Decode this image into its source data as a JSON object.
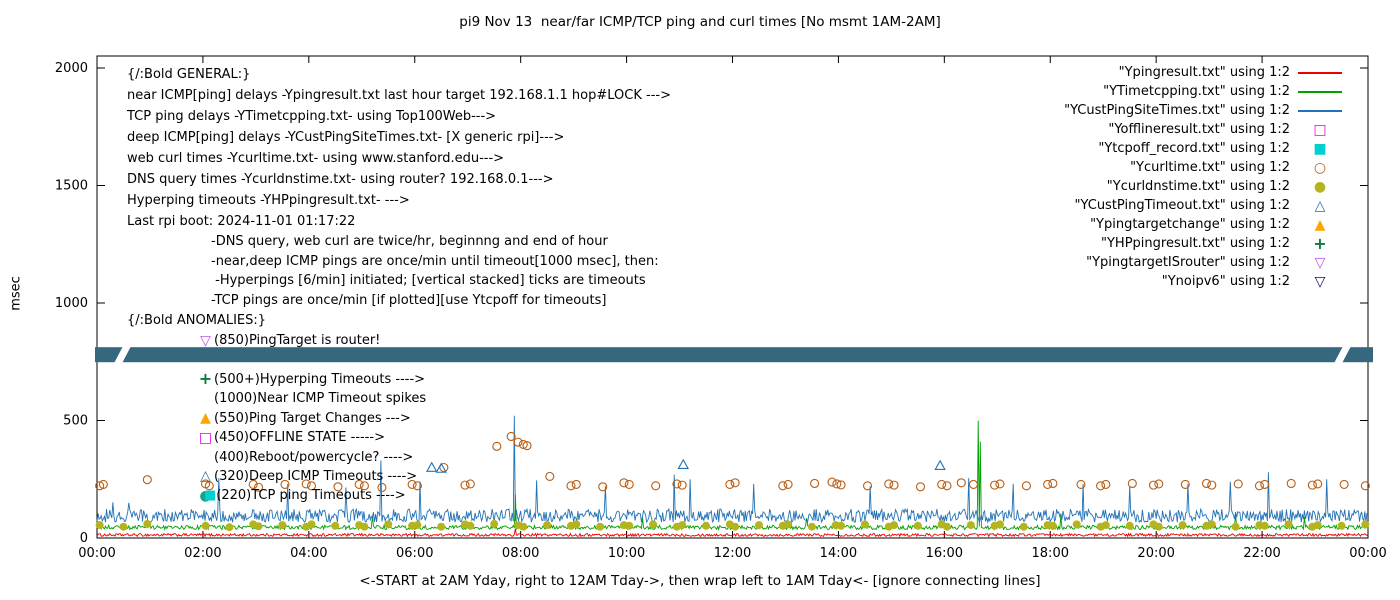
{
  "chart_data": {
    "type": "line",
    "title": "pi9 Nov 13  near/far ICMP/TCP ping and curl times [No msmt 1AM-2AM]",
    "xlabel": "<-START at 2AM Yday, right to 12AM Tday->, then wrap left to 1AM Tday<- [ignore connecting lines]",
    "ylabel": "msec",
    "x_unit": "hours",
    "xlim": [
      0,
      24
    ],
    "ylim": [
      0,
      2050
    ],
    "grid": false,
    "legend_position": "top-right",
    "x_ticks": [
      "00:00",
      "02:00",
      "04:00",
      "06:00",
      "08:00",
      "10:00",
      "12:00",
      "14:00",
      "16:00",
      "18:00",
      "20:00",
      "22:00",
      "00:00"
    ],
    "y_ticks": [
      0,
      500,
      1000,
      1500,
      2000
    ],
    "band": {
      "y_value": 780,
      "y_span_msec": 64,
      "color": "#35687f"
    },
    "series": [
      {
        "name": "Ypingresult.txt",
        "style": "line",
        "color": "#ee0000",
        "base": [
          [
            0,
            13
          ],
          [
            24,
            13
          ]
        ],
        "noise": 6,
        "spikes": [
          [
            7.9,
            40
          ]
        ]
      },
      {
        "name": "YTimetcpping.txt",
        "style": "line",
        "color": "#00a000",
        "base": [
          [
            0,
            45
          ],
          [
            24,
            45
          ]
        ],
        "noise": 9,
        "spikes": [
          [
            5.2,
            95
          ],
          [
            7.9,
            185
          ],
          [
            10.3,
            90
          ],
          [
            13.4,
            85
          ],
          [
            16.64,
            500
          ],
          [
            16.68,
            410
          ],
          [
            18.2,
            95
          ],
          [
            21.5,
            100
          ],
          [
            22.8,
            90
          ]
        ]
      },
      {
        "name": "YCustPingSiteTimes.txt",
        "style": "line",
        "color": "#2272b5",
        "base": [
          [
            0,
            95
          ],
          [
            24,
            95
          ]
        ],
        "noise": 28,
        "spikes": [
          [
            0.3,
            152
          ],
          [
            0.6,
            150
          ],
          [
            2.3,
            255
          ],
          [
            3.6,
            230
          ],
          [
            4.7,
            215
          ],
          [
            5.35,
            330
          ],
          [
            6.1,
            240
          ],
          [
            7.87,
            520
          ],
          [
            8.3,
            245
          ],
          [
            9.6,
            220
          ],
          [
            10.9,
            270
          ],
          [
            11.2,
            250
          ],
          [
            12.4,
            230
          ],
          [
            14.6,
            220
          ],
          [
            16.45,
            255
          ],
          [
            17.3,
            230
          ],
          [
            18.63,
            230
          ],
          [
            19.5,
            220
          ],
          [
            20.6,
            230
          ],
          [
            21.4,
            240
          ],
          [
            22.12,
            280
          ],
          [
            23.22,
            250
          ]
        ]
      },
      {
        "name": "Yofflineresult.txt",
        "style": "points",
        "marker": "square-open",
        "color": "#e600e6",
        "points": []
      },
      {
        "name": "Ytcpoff_record.txt",
        "style": "points",
        "marker": "square-filled",
        "color": "#00d0d0",
        "points": []
      },
      {
        "name": "Ycurltime.txt",
        "style": "points",
        "marker": "circle-open",
        "color": "#b85c12",
        "points": [
          [
            0.05,
            222
          ],
          [
            0.12,
            228
          ],
          [
            0.95,
            248
          ],
          [
            2.05,
            230
          ],
          [
            2.12,
            222
          ],
          [
            2.95,
            228
          ],
          [
            3.05,
            216
          ],
          [
            3.55,
            228
          ],
          [
            3.95,
            230
          ],
          [
            4.05,
            222
          ],
          [
            4.55,
            218
          ],
          [
            4.95,
            228
          ],
          [
            5.05,
            222
          ],
          [
            5.38,
            215
          ],
          [
            5.95,
            228
          ],
          [
            6.05,
            222
          ],
          [
            6.55,
            300
          ],
          [
            6.95,
            225
          ],
          [
            7.05,
            230
          ],
          [
            7.55,
            390
          ],
          [
            7.82,
            432
          ],
          [
            7.95,
            408
          ],
          [
            8.05,
            398
          ],
          [
            8.12,
            393
          ],
          [
            8.55,
            262
          ],
          [
            8.95,
            222
          ],
          [
            9.05,
            228
          ],
          [
            9.55,
            218
          ],
          [
            9.95,
            235
          ],
          [
            10.05,
            228
          ],
          [
            10.55,
            222
          ],
          [
            10.95,
            230
          ],
          [
            11.05,
            225
          ],
          [
            11.95,
            228
          ],
          [
            12.05,
            235
          ],
          [
            12.95,
            222
          ],
          [
            13.05,
            228
          ],
          [
            13.55,
            232
          ],
          [
            13.88,
            238
          ],
          [
            13.97,
            230
          ],
          [
            14.05,
            226
          ],
          [
            14.55,
            222
          ],
          [
            14.95,
            230
          ],
          [
            15.05,
            225
          ],
          [
            15.55,
            218
          ],
          [
            15.95,
            228
          ],
          [
            16.05,
            222
          ],
          [
            16.32,
            235
          ],
          [
            16.55,
            228
          ],
          [
            16.95,
            225
          ],
          [
            17.05,
            230
          ],
          [
            17.55,
            222
          ],
          [
            17.95,
            228
          ],
          [
            18.05,
            232
          ],
          [
            18.58,
            228
          ],
          [
            18.95,
            222
          ],
          [
            19.05,
            228
          ],
          [
            19.55,
            232
          ],
          [
            19.95,
            225
          ],
          [
            20.05,
            230
          ],
          [
            20.55,
            228
          ],
          [
            20.95,
            232
          ],
          [
            21.05,
            225
          ],
          [
            21.55,
            230
          ],
          [
            21.95,
            222
          ],
          [
            22.05,
            228
          ],
          [
            22.55,
            232
          ],
          [
            22.95,
            225
          ],
          [
            23.05,
            230
          ],
          [
            23.55,
            228
          ],
          [
            23.95,
            222
          ]
        ]
      },
      {
        "name": "Ycurldnstime.txt",
        "style": "points",
        "marker": "circle-filled",
        "color": "#b4b41e",
        "points": [
          [
            0.05,
            55
          ],
          [
            0.5,
            48
          ],
          [
            0.95,
            60
          ],
          [
            2.05,
            52
          ],
          [
            2.5,
            46
          ],
          [
            2.95,
            58
          ],
          [
            3.05,
            50
          ],
          [
            3.5,
            55
          ],
          [
            3.95,
            48
          ],
          [
            4.05,
            58
          ],
          [
            4.5,
            52
          ],
          [
            4.95,
            55
          ],
          [
            5.05,
            48
          ],
          [
            5.5,
            58
          ],
          [
            5.95,
            52
          ],
          [
            6.05,
            55
          ],
          [
            6.5,
            48
          ],
          [
            6.95,
            58
          ],
          [
            7.05,
            52
          ],
          [
            7.5,
            60
          ],
          [
            7.95,
            55
          ],
          [
            8.05,
            48
          ],
          [
            8.5,
            55
          ],
          [
            8.95,
            52
          ],
          [
            9.05,
            58
          ],
          [
            9.5,
            48
          ],
          [
            9.95,
            55
          ],
          [
            10.05,
            52
          ],
          [
            10.5,
            58
          ],
          [
            10.95,
            48
          ],
          [
            11.05,
            55
          ],
          [
            11.5,
            52
          ],
          [
            11.95,
            58
          ],
          [
            12.05,
            48
          ],
          [
            12.5,
            55
          ],
          [
            12.95,
            52
          ],
          [
            13.05,
            58
          ],
          [
            13.5,
            48
          ],
          [
            13.95,
            55
          ],
          [
            14.05,
            52
          ],
          [
            14.5,
            58
          ],
          [
            14.95,
            48
          ],
          [
            15.05,
            55
          ],
          [
            15.5,
            52
          ],
          [
            15.95,
            58
          ],
          [
            16.05,
            48
          ],
          [
            16.5,
            55
          ],
          [
            16.95,
            52
          ],
          [
            17.05,
            58
          ],
          [
            17.5,
            48
          ],
          [
            17.95,
            55
          ],
          [
            18.05,
            52
          ],
          [
            18.5,
            58
          ],
          [
            18.95,
            48
          ],
          [
            19.05,
            55
          ],
          [
            19.5,
            52
          ],
          [
            19.95,
            58
          ],
          [
            20.05,
            48
          ],
          [
            20.5,
            55
          ],
          [
            20.95,
            52
          ],
          [
            21.05,
            58
          ],
          [
            21.5,
            48
          ],
          [
            21.95,
            55
          ],
          [
            22.05,
            52
          ],
          [
            22.5,
            58
          ],
          [
            22.95,
            48
          ],
          [
            23.05,
            55
          ],
          [
            23.5,
            52
          ],
          [
            23.95,
            58
          ]
        ]
      },
      {
        "name": "YCustPingTimeout.txt",
        "style": "points",
        "marker": "triangle-open",
        "color": "#2272b5",
        "points": [
          [
            6.32,
            300
          ],
          [
            6.5,
            296
          ],
          [
            11.07,
            312
          ],
          [
            15.92,
            308
          ]
        ]
      },
      {
        "name": "Ypingtargetchange",
        "style": "points",
        "marker": "triangle-filled",
        "color": "#ffa500",
        "points": []
      },
      {
        "name": "YHPpingresult.txt",
        "style": "points",
        "marker": "plus",
        "color": "#0e7a3c",
        "points": []
      },
      {
        "name": "YpingtargetISrouter",
        "style": "points",
        "marker": "tridown-open",
        "color": "#bb55ee",
        "points": []
      },
      {
        "name": "Ynoipv6",
        "style": "points",
        "marker": "tridown-open",
        "color": "#101060",
        "points": []
      }
    ]
  },
  "legend": [
    {
      "label": "\"Ypingresult.txt\" using 1:2",
      "sample": "line",
      "color": "#ee0000"
    },
    {
      "label": "\"YTimetcpping.txt\" using 1:2",
      "sample": "line",
      "color": "#00a000"
    },
    {
      "label": "\"YCustPingSiteTimes.txt\" using 1:2",
      "sample": "line",
      "color": "#2272b5"
    },
    {
      "label": "\"Yofflineresult.txt\" using 1:2",
      "sample": "square-open",
      "color": "#e600e6"
    },
    {
      "label": "\"Ytcpoff_record.txt\" using 1:2",
      "sample": "square-filled",
      "color": "#00d0d0"
    },
    {
      "label": "\"Ycurltime.txt\" using 1:2",
      "sample": "circle-open",
      "color": "#b85c12"
    },
    {
      "label": "\"Ycurldnstime.txt\" using 1:2",
      "sample": "circle-filled",
      "color": "#b4b41e"
    },
    {
      "label": "\"YCustPingTimeout.txt\" using 1:2",
      "sample": "triangle-open",
      "color": "#2272b5"
    },
    {
      "label": "\"Ypingtargetchange\" using 1:2",
      "sample": "triangle-filled",
      "color": "#ffa500"
    },
    {
      "label": "\"YHPpingresult.txt\" using 1:2",
      "sample": "plus",
      "color": "#0e7a3c"
    },
    {
      "label": "\"YpingtargetISrouter\" using 1:2",
      "sample": "tridown-open",
      "color": "#bb55ee"
    },
    {
      "label": "\"Ynoipv6\" using 1:2",
      "sample": "tridown-open",
      "color": "#101060"
    }
  ],
  "annotations": {
    "general": [
      "{/:Bold GENERAL:}",
      "near ICMP[ping] delays -Ypingresult.txt last hour target 192.168.1.1 hop#LOCK --->",
      "TCP ping delays -YTimetcpping.txt- using Top100Web--->",
      "deep ICMP[ping] delays -YCustPingSiteTimes.txt- [X generic rpi]--->",
      "web curl times -Ycurltime.txt- using www.stanford.edu--->",
      "DNS query times -Ycurldnstime.txt- using router? 192.168.0.1--->",
      "Hyperping timeouts -YHPpingresult.txt- --->",
      "Last rpi boot: 2024-11-01 01:17:22"
    ],
    "notes": [
      "-DNS query, web curl are twice/hr, beginnng and end of hour",
      "-near,deep ICMP pings are once/min until timeout[1000 msec], then:",
      " -Hyperpings [6/min] initiated; [vertical stacked] ticks are timeouts",
      "-TCP pings are once/min [if plotted][use Ytcpoff for timeouts]"
    ],
    "anomalies_header": "{/:Bold ANOMALIES:}",
    "anomalies": [
      {
        "glyph": "tridown-open",
        "color": "#bb55ee",
        "text": "(850)PingTarget is router!"
      },
      {
        "glyph": "none",
        "color": "",
        "text": ""
      },
      {
        "glyph": "plus",
        "color": "#0e7a3c",
        "text": "(500+)Hyperping Timeouts ---->"
      },
      {
        "glyph": "none",
        "color": "",
        "text": "(1000)Near ICMP Timeout spikes"
      },
      {
        "glyph": "triangle-filled",
        "color": "#ffa500",
        "text": "(550)Ping Target Changes --->"
      },
      {
        "glyph": "square-open",
        "color": "#e600e6",
        "text": "(450)OFFLINE STATE ----->"
      },
      {
        "glyph": "none",
        "color": "",
        "text": "(400)Reboot/powercycle? ---->"
      },
      {
        "glyph": "triangle-open",
        "color": "#2272b5",
        "text": "(320)Deep ICMP Timeouts ---->"
      },
      {
        "glyph": "circle-square",
        "color": "#00d0d0",
        "color2": "#1ba187",
        "text": "(220)TCP ping Timeouts ---->"
      }
    ]
  }
}
